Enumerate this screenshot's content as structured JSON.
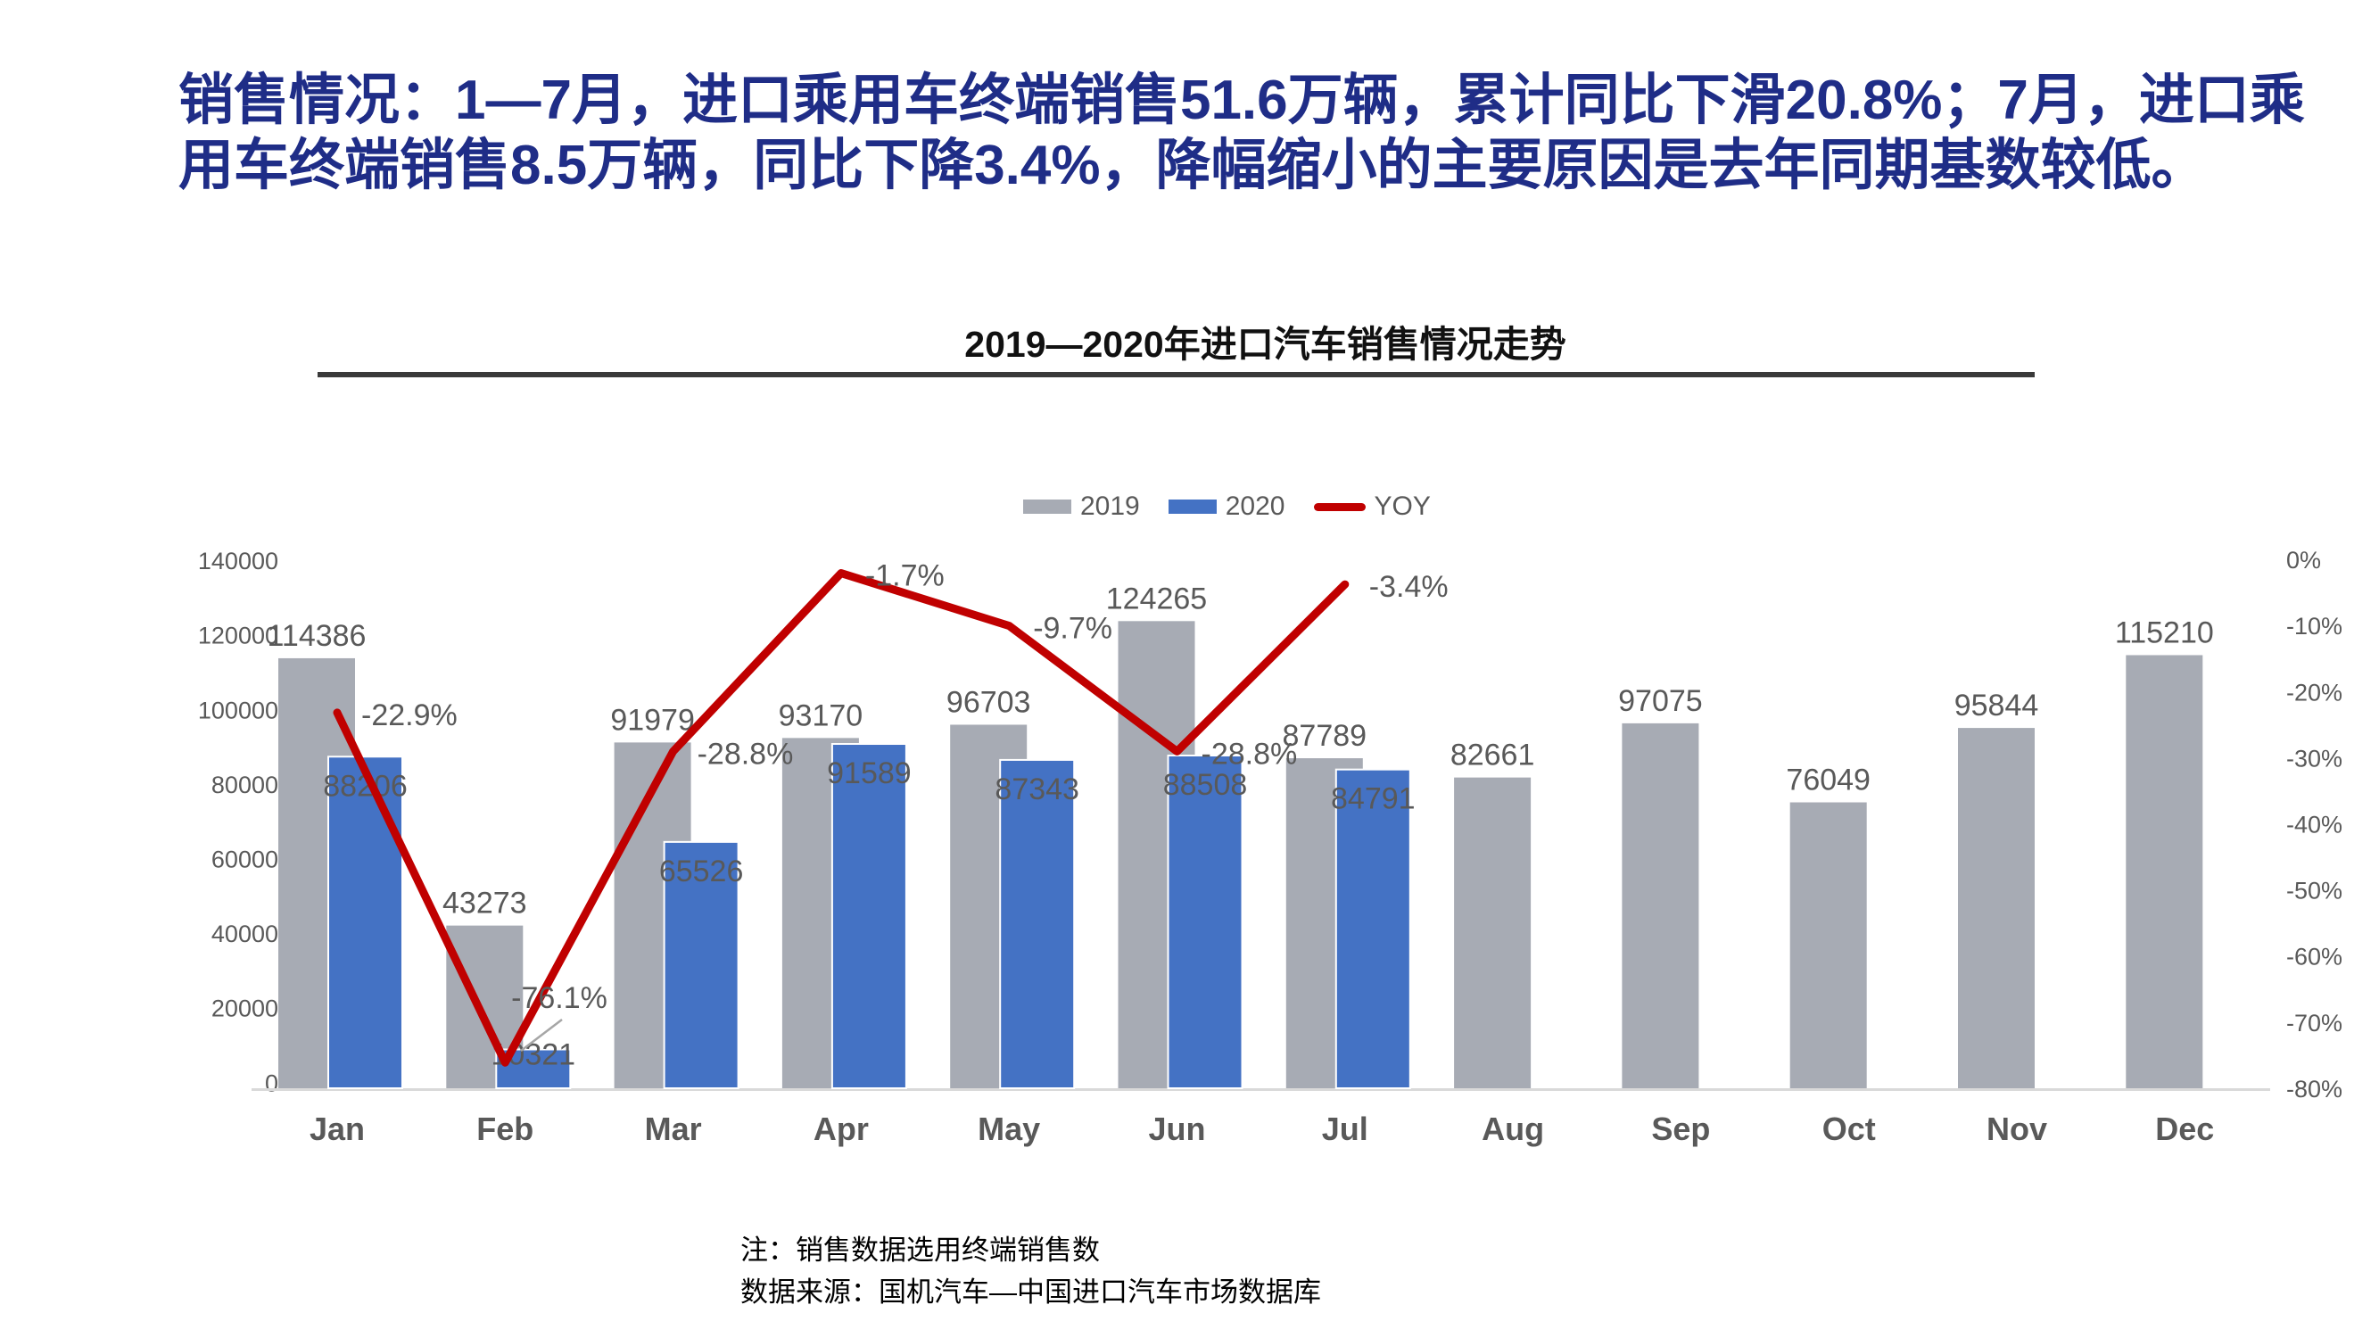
{
  "slide": {
    "title": "销售情况：1—7月，进口乘用车终端销售51.6万辆，累计同比下滑20.8%；7月，进口乘用车终端销售8.5万辆，同比下降3.4%，降幅缩小的主要原因是去年同期基数较低。",
    "title_color": "#1F2D87"
  },
  "notes": {
    "line1": "注：销售数据选用终端销售数",
    "line2": "数据来源：国机汽车—中国进口汽车市场数据库"
  },
  "chart_data": {
    "type": "bar",
    "subtype": "grouped-bars-with-line",
    "title": "2019—2020年进口汽车销售情况走势",
    "categories": [
      "Jan",
      "Feb",
      "Mar",
      "Apr",
      "May",
      "Jun",
      "Jul",
      "Aug",
      "Sep",
      "Oct",
      "Nov",
      "Dec"
    ],
    "series": [
      {
        "name": "2019",
        "type": "bar",
        "color": "#A7ABB4",
        "values": [
          114386,
          43273,
          91979,
          93170,
          96703,
          124265,
          87789,
          82661,
          97075,
          76049,
          95844,
          115210
        ]
      },
      {
        "name": "2020",
        "type": "bar",
        "color": "#4472C4",
        "values": [
          88206,
          10321,
          65526,
          91589,
          87343,
          88508,
          84791,
          null,
          null,
          null,
          null,
          null
        ]
      },
      {
        "name": "YOY",
        "type": "line",
        "color": "#C00000",
        "axis": "right",
        "values": [
          -22.9,
          -76.1,
          -28.8,
          -1.7,
          -9.7,
          -28.8,
          -3.4,
          null,
          null,
          null,
          null,
          null
        ],
        "labels": [
          "-22.9%",
          "-76.1%",
          "-28.8%",
          "-1.7%",
          "-9.7%",
          "-28.8%",
          "-3.4%"
        ]
      }
    ],
    "left_axis": {
      "min": 0,
      "max": 140000,
      "ticks": [
        "140000",
        "120000",
        "100000",
        "80000",
        "60000",
        "40000",
        "20000",
        "0"
      ]
    },
    "right_axis": {
      "min": -80,
      "max": 0,
      "ticks": [
        "0%",
        "-10%",
        "-20%",
        "-30%",
        "-40%",
        "-50%",
        "-60%",
        "-70%",
        "-80%"
      ]
    },
    "legend": [
      "2019",
      "2020",
      "YOY"
    ],
    "label_color": "#595959",
    "grid": "off",
    "legend_position": "top-center"
  }
}
